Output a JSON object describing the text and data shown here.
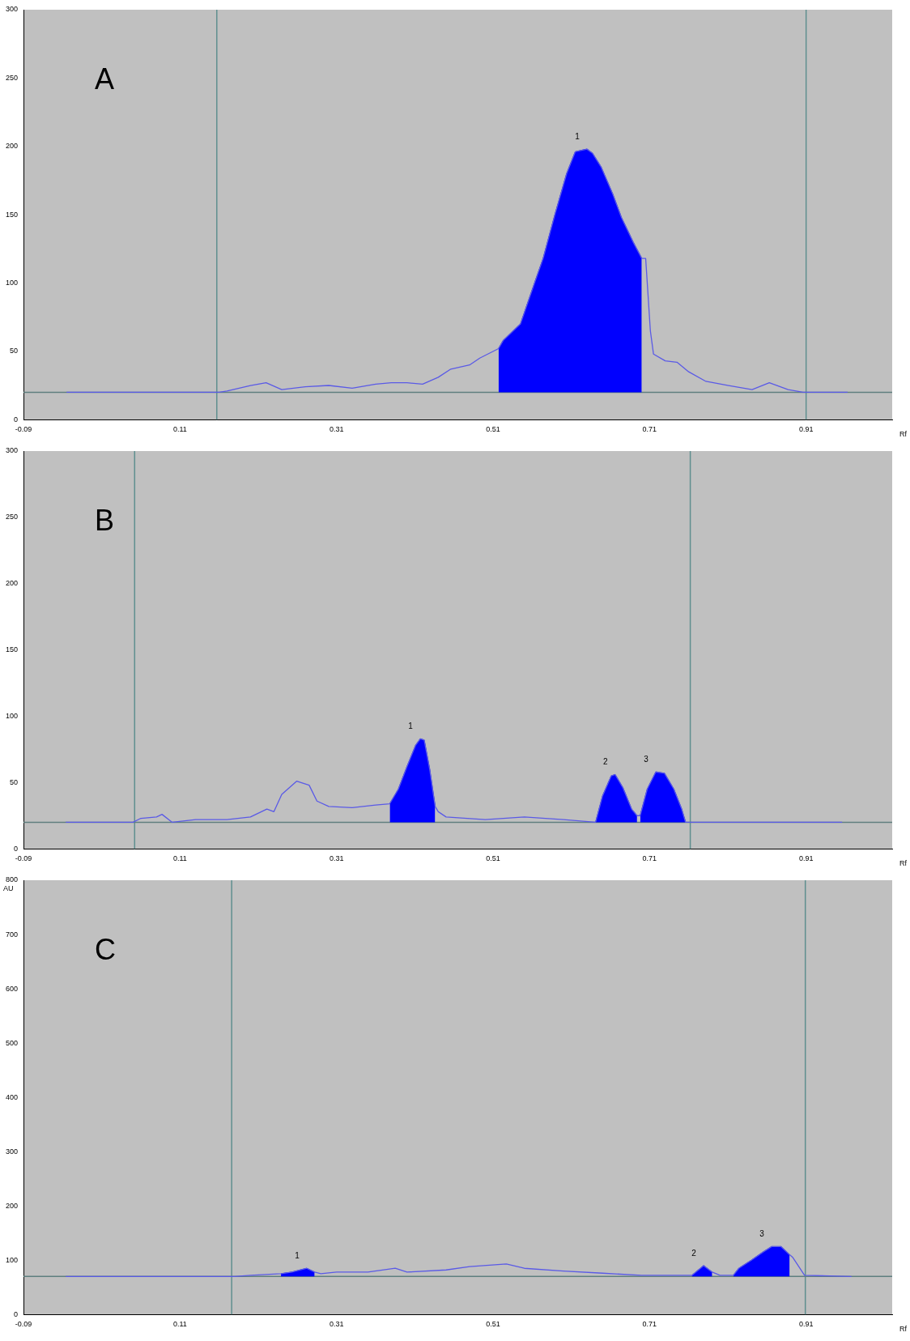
{
  "chart_data": [
    {
      "type": "line",
      "title": "A",
      "xlabel": "Rf",
      "xlim": [
        -0.09,
        1.02
      ],
      "xticks": [
        -0.09,
        0.11,
        0.31,
        0.51,
        0.71,
        0.91
      ],
      "ylim": [
        0,
        300
      ],
      "yticks": [
        0,
        50,
        100,
        150,
        200,
        250,
        300
      ],
      "grid": false,
      "legend": false,
      "marker": "none",
      "line_style": "solid",
      "series": [
        {
          "color": "#5a5ae6",
          "x": [
            -0.035,
            0.16,
            0.17,
            0.2,
            0.22,
            0.24,
            0.27,
            0.3,
            0.33,
            0.36,
            0.38,
            0.4,
            0.42,
            0.44,
            0.456,
            0.48,
            0.493,
            0.517,
            0.523,
            0.545,
            0.563,
            0.574,
            0.589,
            0.604,
            0.615,
            0.622,
            0.63,
            0.637,
            0.648,
            0.663,
            0.674,
            0.689,
            0.7,
            0.705,
            0.711,
            0.715,
            0.73,
            0.745,
            0.76,
            0.782,
            0.811,
            0.841,
            0.863,
            0.887,
            0.906,
            0.963
          ],
          "values": [
            20,
            20,
            21,
            25,
            27,
            22,
            24,
            25,
            23,
            26,
            27,
            27,
            26,
            31,
            37,
            40,
            45,
            52,
            58,
            70,
            100,
            118,
            150,
            180,
            196,
            197,
            198,
            195,
            185,
            165,
            148,
            130,
            118,
            118,
            65,
            48,
            43,
            42,
            35,
            28,
            25,
            22,
            27,
            22,
            20,
            20
          ]
        },
        {
          "type": "area",
          "color": "#0000ff",
          "x": [
            0.517,
            0.523,
            0.545,
            0.563,
            0.574,
            0.589,
            0.604,
            0.615,
            0.622,
            0.63,
            0.637,
            0.648,
            0.663,
            0.674,
            0.689,
            0.7
          ],
          "values": [
            52,
            58,
            70,
            100,
            118,
            150,
            180,
            196,
            197,
            198,
            195,
            185,
            165,
            148,
            130,
            118
          ]
        }
      ],
      "ref_lines": [
        {
          "axis": "x",
          "value": 0.157,
          "color": "#5f8f8f"
        },
        {
          "axis": "x",
          "value": 0.91,
          "color": "#5f8f8f"
        },
        {
          "axis": "y",
          "value": 20,
          "color": "#5f7f7f"
        }
      ],
      "annotations": [
        {
          "text": "1",
          "x": 0.63,
          "y": 198
        }
      ]
    },
    {
      "type": "line",
      "title": "B",
      "xlabel": "Rf",
      "xlim": [
        -0.09,
        1.02
      ],
      "xticks": [
        -0.09,
        0.11,
        0.31,
        0.51,
        0.71,
        0.91
      ],
      "ylim": [
        0,
        300
      ],
      "yticks": [
        0,
        50,
        100,
        150,
        200,
        250,
        300
      ],
      "grid": false,
      "legend": false,
      "marker": "none",
      "line_style": "solid",
      "series": [
        {
          "color": "#5a5ae6",
          "x": [
            -0.036,
            0.05,
            0.06,
            0.08,
            0.087,
            0.1,
            0.13,
            0.17,
            0.2,
            0.221,
            0.23,
            0.24,
            0.259,
            0.275,
            0.285,
            0.3,
            0.33,
            0.36,
            0.378,
            0.389,
            0.4,
            0.411,
            0.417,
            0.422,
            0.429,
            0.436,
            0.44,
            0.45,
            0.5,
            0.55,
            0.6,
            0.641,
            0.65,
            0.661,
            0.666,
            0.676,
            0.687,
            0.694,
            0.698,
            0.707,
            0.718,
            0.729,
            0.741,
            0.751,
            0.756,
            0.956
          ],
          "values": [
            20,
            20,
            23,
            24,
            26,
            20,
            22,
            22,
            24,
            30,
            28,
            41,
            51,
            48,
            36,
            32,
            31,
            33,
            34,
            45,
            62,
            78,
            83,
            82,
            60,
            32,
            28,
            24,
            22,
            24,
            22,
            20,
            40,
            55,
            56,
            46,
            30,
            25,
            25,
            45,
            58,
            57,
            45,
            30,
            20,
            20
          ]
        },
        {
          "type": "area",
          "color": "#0000ff",
          "x": [
            0.378,
            0.389,
            0.4,
            0.411,
            0.417,
            0.422,
            0.429,
            0.436
          ],
          "values": [
            34,
            45,
            62,
            78,
            83,
            82,
            60,
            32
          ]
        },
        {
          "type": "area",
          "color": "#0000ff",
          "x": [
            0.641,
            0.65,
            0.661,
            0.666,
            0.676,
            0.687,
            0.694
          ],
          "values": [
            20,
            40,
            55,
            56,
            46,
            30,
            25
          ]
        },
        {
          "type": "area",
          "color": "#0000ff",
          "x": [
            0.698,
            0.707,
            0.718,
            0.729,
            0.741,
            0.751,
            0.756
          ],
          "values": [
            25,
            45,
            58,
            57,
            45,
            30,
            20
          ]
        }
      ],
      "ref_lines": [
        {
          "axis": "x",
          "value": 0.052,
          "color": "#5f8f8f"
        },
        {
          "axis": "x",
          "value": 0.762,
          "color": "#5f8f8f"
        },
        {
          "axis": "y",
          "value": 20,
          "color": "#5f7f7f"
        }
      ],
      "annotations": [
        {
          "text": "1",
          "x": 0.417,
          "y": 83
        },
        {
          "text": "2",
          "x": 0.666,
          "y": 56
        },
        {
          "text": "3",
          "x": 0.718,
          "y": 58
        }
      ]
    },
    {
      "type": "line",
      "title": "C",
      "xlabel": "Rf",
      "ylabel": "AU",
      "xlim": [
        -0.09,
        1.02
      ],
      "xticks": [
        -0.09,
        0.11,
        0.31,
        0.51,
        0.71,
        0.91
      ],
      "ylim": [
        0,
        800
      ],
      "yticks": [
        0,
        100,
        200,
        300,
        400,
        500,
        600,
        700,
        800
      ],
      "grid": false,
      "legend": false,
      "marker": "none",
      "line_style": "solid",
      "series": [
        {
          "color": "#5a5ae6",
          "x": [
            -0.036,
            0.18,
            0.2,
            0.239,
            0.253,
            0.272,
            0.282,
            0.29,
            0.31,
            0.35,
            0.385,
            0.4,
            0.45,
            0.48,
            0.527,
            0.55,
            0.6,
            0.65,
            0.7,
            0.75,
            0.764,
            0.779,
            0.79,
            0.8,
            0.817,
            0.824,
            0.84,
            0.855,
            0.866,
            0.878,
            0.889,
            0.893,
            0.908,
            0.968
          ],
          "values": [
            70,
            70,
            72,
            75,
            78,
            85,
            78,
            75,
            78,
            78,
            85,
            78,
            82,
            88,
            93,
            85,
            80,
            76,
            72,
            72,
            72,
            90,
            78,
            72,
            72,
            85,
            100,
            115,
            125,
            125,
            110,
            105,
            72,
            70
          ]
        },
        {
          "type": "area",
          "color": "#0000ff",
          "x": [
            0.239,
            0.253,
            0.272,
            0.282
          ],
          "values": [
            75,
            78,
            85,
            78
          ]
        },
        {
          "type": "area",
          "color": "#0000ff",
          "x": [
            0.764,
            0.779,
            0.79
          ],
          "values": [
            72,
            90,
            78
          ]
        },
        {
          "type": "area",
          "color": "#0000ff",
          "x": [
            0.817,
            0.824,
            0.84,
            0.855,
            0.866,
            0.878,
            0.889
          ],
          "values": [
            72,
            85,
            100,
            115,
            125,
            125,
            110
          ]
        }
      ],
      "ref_lines": [
        {
          "axis": "x",
          "value": 0.176,
          "color": "#5f8f8f"
        },
        {
          "axis": "x",
          "value": 0.909,
          "color": "#5f8f8f"
        },
        {
          "axis": "y",
          "value": 70,
          "color": "#5f7f7f"
        }
      ],
      "annotations": [
        {
          "text": "1",
          "x": 0.272,
          "y": 85
        },
        {
          "text": "2",
          "x": 0.779,
          "y": 90
        },
        {
          "text": "3",
          "x": 0.866,
          "y": 125
        }
      ]
    }
  ]
}
